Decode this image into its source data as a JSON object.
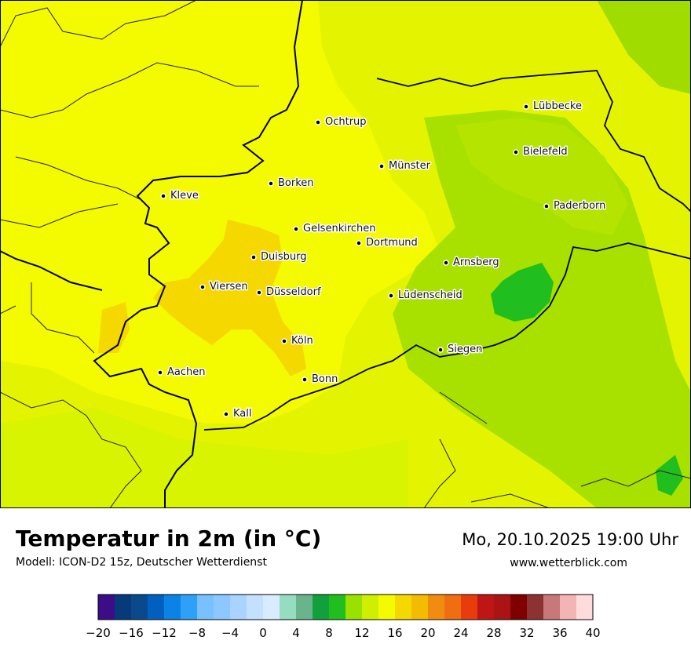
{
  "header": {
    "title": "Temperatur in 2m (in °C)",
    "model": "Modell: ICON-D2 15z, Deutscher Wetterdienst",
    "datetime": "Mo, 20.10.2025 19:00 Uhr",
    "website": "www.wetterblick.com"
  },
  "cities": [
    {
      "name": "Lübbecke"
    },
    {
      "name": "Ochtrup"
    },
    {
      "name": "Bielefeld"
    },
    {
      "name": "Münster"
    },
    {
      "name": "Kleve"
    },
    {
      "name": "Borken"
    },
    {
      "name": "Paderborn"
    },
    {
      "name": "Gelsenkirchen"
    },
    {
      "name": "Dortmund"
    },
    {
      "name": "Duisburg"
    },
    {
      "name": "Arnsberg"
    },
    {
      "name": "Viersen"
    },
    {
      "name": "Düsseldorf"
    },
    {
      "name": "Lüdenscheid"
    },
    {
      "name": "Köln"
    },
    {
      "name": "Siegen"
    },
    {
      "name": "Aachen"
    },
    {
      "name": "Bonn"
    },
    {
      "name": "Kall"
    }
  ],
  "legend": {
    "unit": "°C",
    "colors": [
      "#3b0d87",
      "#073a7a",
      "#0a4a8c",
      "#0060c0",
      "#0a82e6",
      "#2fa0f8",
      "#78c0ff",
      "#8cc8ff",
      "#a8d4ff",
      "#c4e0ff",
      "#d8ecff",
      "#96dcc0",
      "#6ab48c",
      "#12a03c",
      "#20be1e",
      "#9ae000",
      "#cef000",
      "#f4fa00",
      "#f4d800",
      "#f4bc00",
      "#f28c10",
      "#ee6e10",
      "#e83c0c",
      "#be1614",
      "#aa1414",
      "#800000",
      "#8c3232",
      "#c87878",
      "#f4b4b4",
      "#ffdcdc"
    ],
    "ticks": [
      "−20",
      "−16",
      "−12",
      "−8",
      "−4",
      "0",
      "4",
      "8",
      "12",
      "16",
      "20",
      "24",
      "28",
      "32",
      "36",
      "40"
    ]
  }
}
